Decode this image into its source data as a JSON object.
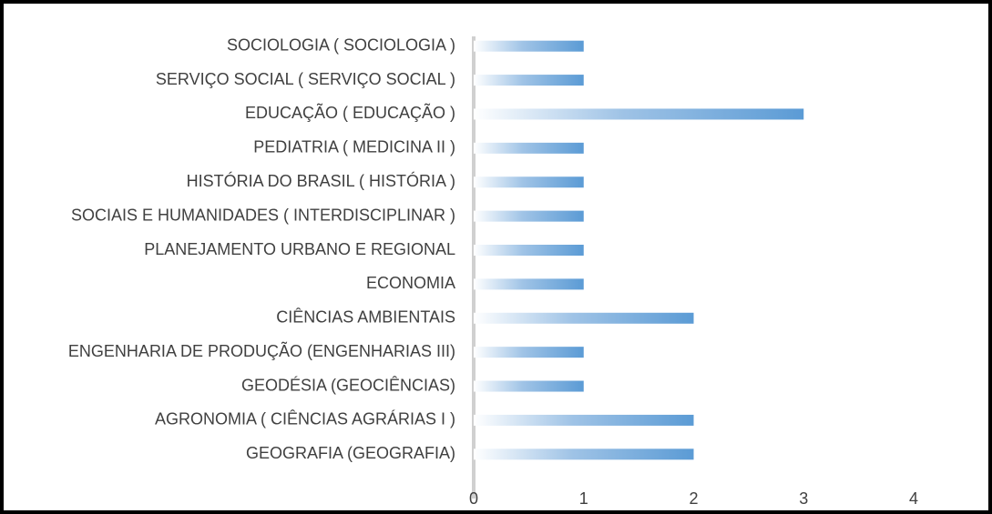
{
  "chart_data": {
    "type": "bar",
    "orientation": "horizontal",
    "categories": [
      "SOCIOLOGIA ( SOCIOLOGIA )",
      "SERVIÇO SOCIAL ( SERVIÇO SOCIAL )",
      "EDUCAÇÃO ( EDUCAÇÃO )",
      "PEDIATRIA ( MEDICINA II )",
      "HISTÓRIA DO BRASIL ( HISTÓRIA )",
      "SOCIAIS E HUMANIDADES ( INTERDISCIPLINAR )",
      "PLANEJAMENTO URBANO E REGIONAL",
      "ECONOMIA",
      "CIÊNCIAS AMBIENTAIS",
      "ENGENHARIA DE PRODUÇÃO (ENGENHARIAS III)",
      "GEODÉSIA (GEOCIÊNCIAS)",
      "AGRONOMIA  ( CIÊNCIAS AGRÁRIAS I )",
      "GEOGRAFIA (GEOGRAFIA)"
    ],
    "values": [
      1,
      1,
      3,
      1,
      1,
      1,
      1,
      1,
      2,
      1,
      1,
      2,
      2
    ],
    "color": "#5b9bd5",
    "xlim": [
      0,
      4
    ],
    "xticks": [
      0,
      1,
      2,
      3,
      4
    ],
    "grid": false
  }
}
